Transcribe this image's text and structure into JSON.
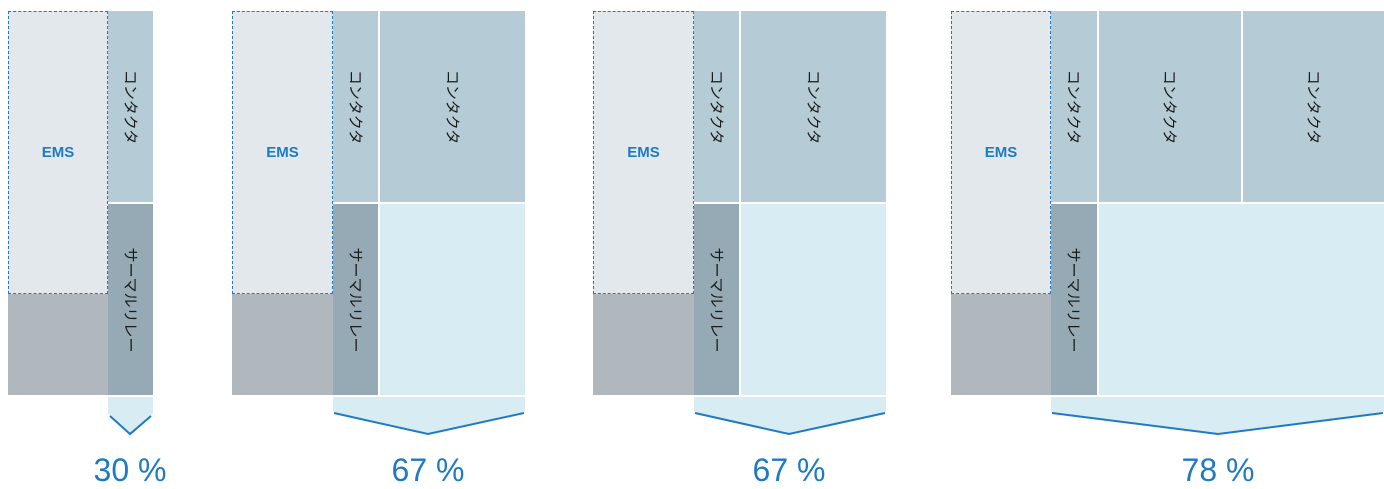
{
  "labels": {
    "ems": "EMS",
    "contactor": "コンタクタ",
    "thermal_relay": "サーマルリレー"
  },
  "percentages": [
    "30 %",
    "67 %",
    "67 %",
    "78 %"
  ],
  "colors": {
    "accent_blue": "#1f7ac4",
    "ems_fill": "#e3e8ec",
    "base_gray": "#b0b7bd",
    "contactor": "#b5cbd6",
    "thermal_relay": "#95aab5",
    "saving_area": "#d8ecf3"
  }
}
